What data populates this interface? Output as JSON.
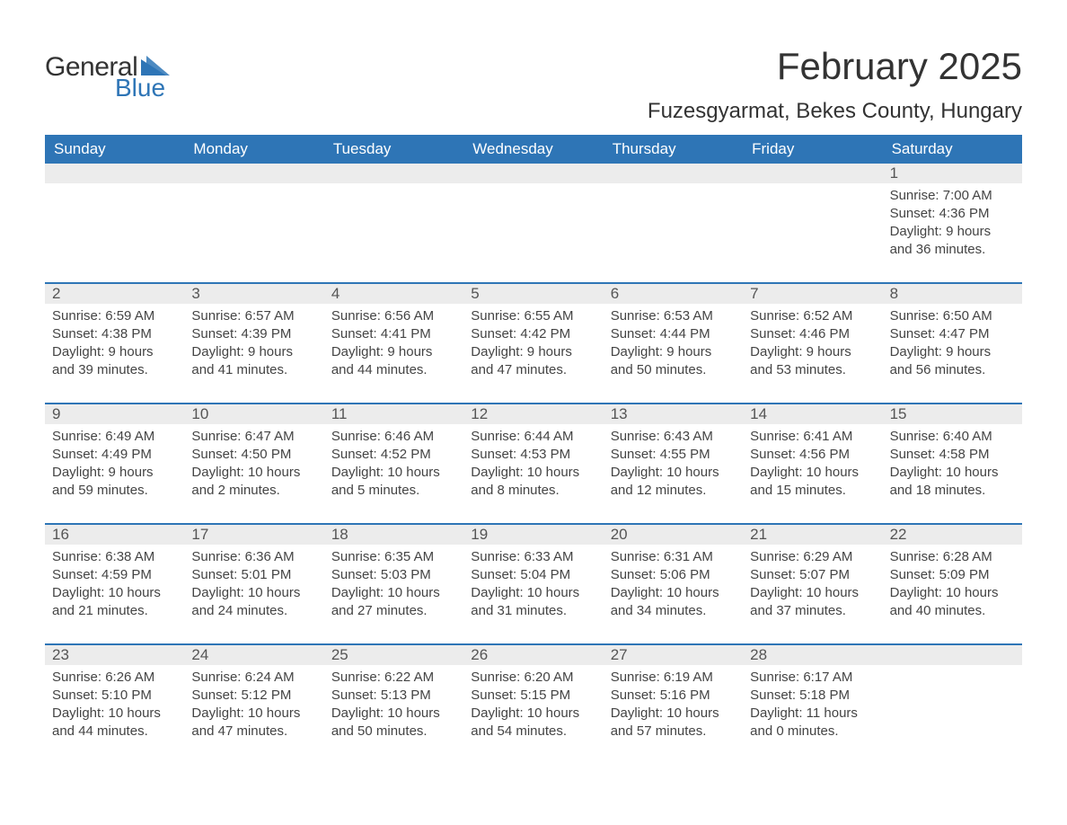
{
  "logo": {
    "word1": "General",
    "word2": "Blue",
    "color_general": "#333333",
    "color_blue": "#2e75b6",
    "shape_color": "#2e75b6"
  },
  "title": {
    "month": "February 2025",
    "location": "Fuzesgyarmat, Bekes County, Hungary",
    "title_fontsize": 42,
    "location_fontsize": 24,
    "title_color": "#333333"
  },
  "calendar": {
    "header_bg": "#2e75b6",
    "header_fg": "#ffffff",
    "daynum_bg": "#ececec",
    "detail_fg": "#444444",
    "border_color": "#2e75b6",
    "day_names": [
      "Sunday",
      "Monday",
      "Tuesday",
      "Wednesday",
      "Thursday",
      "Friday",
      "Saturday"
    ],
    "weeks": [
      [
        null,
        null,
        null,
        null,
        null,
        null,
        {
          "n": "1",
          "sr": "Sunrise: 7:00 AM",
          "ss": "Sunset: 4:36 PM",
          "dl": "Daylight: 9 hours and 36 minutes."
        }
      ],
      [
        {
          "n": "2",
          "sr": "Sunrise: 6:59 AM",
          "ss": "Sunset: 4:38 PM",
          "dl": "Daylight: 9 hours and 39 minutes."
        },
        {
          "n": "3",
          "sr": "Sunrise: 6:57 AM",
          "ss": "Sunset: 4:39 PM",
          "dl": "Daylight: 9 hours and 41 minutes."
        },
        {
          "n": "4",
          "sr": "Sunrise: 6:56 AM",
          "ss": "Sunset: 4:41 PM",
          "dl": "Daylight: 9 hours and 44 minutes."
        },
        {
          "n": "5",
          "sr": "Sunrise: 6:55 AM",
          "ss": "Sunset: 4:42 PM",
          "dl": "Daylight: 9 hours and 47 minutes."
        },
        {
          "n": "6",
          "sr": "Sunrise: 6:53 AM",
          "ss": "Sunset: 4:44 PM",
          "dl": "Daylight: 9 hours and 50 minutes."
        },
        {
          "n": "7",
          "sr": "Sunrise: 6:52 AM",
          "ss": "Sunset: 4:46 PM",
          "dl": "Daylight: 9 hours and 53 minutes."
        },
        {
          "n": "8",
          "sr": "Sunrise: 6:50 AM",
          "ss": "Sunset: 4:47 PM",
          "dl": "Daylight: 9 hours and 56 minutes."
        }
      ],
      [
        {
          "n": "9",
          "sr": "Sunrise: 6:49 AM",
          "ss": "Sunset: 4:49 PM",
          "dl": "Daylight: 9 hours and 59 minutes."
        },
        {
          "n": "10",
          "sr": "Sunrise: 6:47 AM",
          "ss": "Sunset: 4:50 PM",
          "dl": "Daylight: 10 hours and 2 minutes."
        },
        {
          "n": "11",
          "sr": "Sunrise: 6:46 AM",
          "ss": "Sunset: 4:52 PM",
          "dl": "Daylight: 10 hours and 5 minutes."
        },
        {
          "n": "12",
          "sr": "Sunrise: 6:44 AM",
          "ss": "Sunset: 4:53 PM",
          "dl": "Daylight: 10 hours and 8 minutes."
        },
        {
          "n": "13",
          "sr": "Sunrise: 6:43 AM",
          "ss": "Sunset: 4:55 PM",
          "dl": "Daylight: 10 hours and 12 minutes."
        },
        {
          "n": "14",
          "sr": "Sunrise: 6:41 AM",
          "ss": "Sunset: 4:56 PM",
          "dl": "Daylight: 10 hours and 15 minutes."
        },
        {
          "n": "15",
          "sr": "Sunrise: 6:40 AM",
          "ss": "Sunset: 4:58 PM",
          "dl": "Daylight: 10 hours and 18 minutes."
        }
      ],
      [
        {
          "n": "16",
          "sr": "Sunrise: 6:38 AM",
          "ss": "Sunset: 4:59 PM",
          "dl": "Daylight: 10 hours and 21 minutes."
        },
        {
          "n": "17",
          "sr": "Sunrise: 6:36 AM",
          "ss": "Sunset: 5:01 PM",
          "dl": "Daylight: 10 hours and 24 minutes."
        },
        {
          "n": "18",
          "sr": "Sunrise: 6:35 AM",
          "ss": "Sunset: 5:03 PM",
          "dl": "Daylight: 10 hours and 27 minutes."
        },
        {
          "n": "19",
          "sr": "Sunrise: 6:33 AM",
          "ss": "Sunset: 5:04 PM",
          "dl": "Daylight: 10 hours and 31 minutes."
        },
        {
          "n": "20",
          "sr": "Sunrise: 6:31 AM",
          "ss": "Sunset: 5:06 PM",
          "dl": "Daylight: 10 hours and 34 minutes."
        },
        {
          "n": "21",
          "sr": "Sunrise: 6:29 AM",
          "ss": "Sunset: 5:07 PM",
          "dl": "Daylight: 10 hours and 37 minutes."
        },
        {
          "n": "22",
          "sr": "Sunrise: 6:28 AM",
          "ss": "Sunset: 5:09 PM",
          "dl": "Daylight: 10 hours and 40 minutes."
        }
      ],
      [
        {
          "n": "23",
          "sr": "Sunrise: 6:26 AM",
          "ss": "Sunset: 5:10 PM",
          "dl": "Daylight: 10 hours and 44 minutes."
        },
        {
          "n": "24",
          "sr": "Sunrise: 6:24 AM",
          "ss": "Sunset: 5:12 PM",
          "dl": "Daylight: 10 hours and 47 minutes."
        },
        {
          "n": "25",
          "sr": "Sunrise: 6:22 AM",
          "ss": "Sunset: 5:13 PM",
          "dl": "Daylight: 10 hours and 50 minutes."
        },
        {
          "n": "26",
          "sr": "Sunrise: 6:20 AM",
          "ss": "Sunset: 5:15 PM",
          "dl": "Daylight: 10 hours and 54 minutes."
        },
        {
          "n": "27",
          "sr": "Sunrise: 6:19 AM",
          "ss": "Sunset: 5:16 PM",
          "dl": "Daylight: 10 hours and 57 minutes."
        },
        {
          "n": "28",
          "sr": "Sunrise: 6:17 AM",
          "ss": "Sunset: 5:18 PM",
          "dl": "Daylight: 11 hours and 0 minutes."
        },
        null
      ]
    ]
  }
}
